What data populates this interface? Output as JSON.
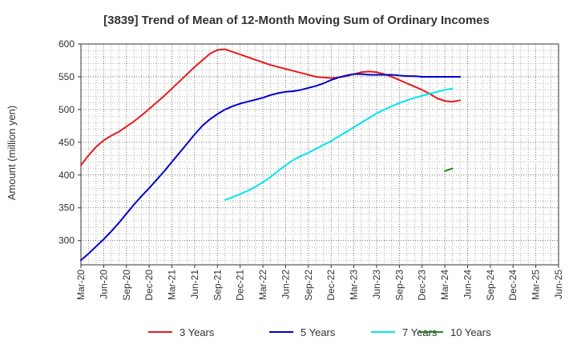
{
  "chart_data": {
    "type": "line",
    "title": "[3839]  Trend of Mean of 12-Month Moving Sum of Ordinary Incomes",
    "xlabel": "",
    "ylabel": "Amount (million yen)",
    "ylim": [
      263,
      600
    ],
    "yticks": [
      300,
      350,
      400,
      450,
      500,
      550,
      600
    ],
    "xticks": [
      "Mar-20",
      "Jun-20",
      "Sep-20",
      "Dec-20",
      "Mar-21",
      "Jun-21",
      "Sep-21",
      "Dec-21",
      "Mar-22",
      "Jun-22",
      "Sep-22",
      "Dec-22",
      "Mar-23",
      "Jun-23",
      "Sep-23",
      "Dec-23",
      "Mar-24",
      "Jun-24",
      "Sep-24",
      "Dec-24",
      "Mar-25",
      "Jun-25"
    ],
    "grid": true,
    "legend_position": "bottom",
    "series": [
      {
        "name": "3 Years",
        "color": "#e41a1c",
        "values": [
          415,
          430,
          443,
          453,
          460,
          466,
          474,
          482,
          491,
          501,
          511,
          521,
          532,
          543,
          554,
          565,
          575,
          585,
          591,
          592,
          588,
          584,
          580,
          576,
          572,
          568,
          565,
          562,
          559,
          556,
          553,
          550,
          549,
          548,
          549,
          551,
          554,
          557,
          558,
          557,
          554,
          550,
          545,
          540,
          535,
          530,
          524,
          517,
          513,
          512,
          514
        ]
      },
      {
        "name": "5 Years",
        "color": "#0000cd",
        "values": [
          270,
          280,
          291,
          302,
          314,
          327,
          341,
          355,
          368,
          380,
          393,
          406,
          420,
          434,
          448,
          462,
          475,
          485,
          493,
          500,
          505,
          509,
          512,
          515,
          518,
          522,
          525,
          527,
          528,
          530,
          533,
          536,
          540,
          545,
          549,
          552,
          554,
          554,
          553,
          553,
          553,
          553,
          552,
          551,
          551,
          550,
          550,
          550,
          550,
          550,
          550
        ]
      },
      {
        "name": "7 Years",
        "color": "#00e5ee",
        "start_index": 19,
        "values": [
          362,
          366,
          371,
          376,
          382,
          389,
          397,
          406,
          415,
          423,
          429,
          434,
          440,
          446,
          452,
          459,
          466,
          473,
          480,
          487,
          494,
          500,
          505,
          510,
          514,
          518,
          521,
          524,
          527,
          530,
          532
        ]
      },
      {
        "name": "10 Years",
        "color": "#228b22",
        "start_index": 48,
        "values": [
          406,
          410
        ]
      }
    ]
  }
}
